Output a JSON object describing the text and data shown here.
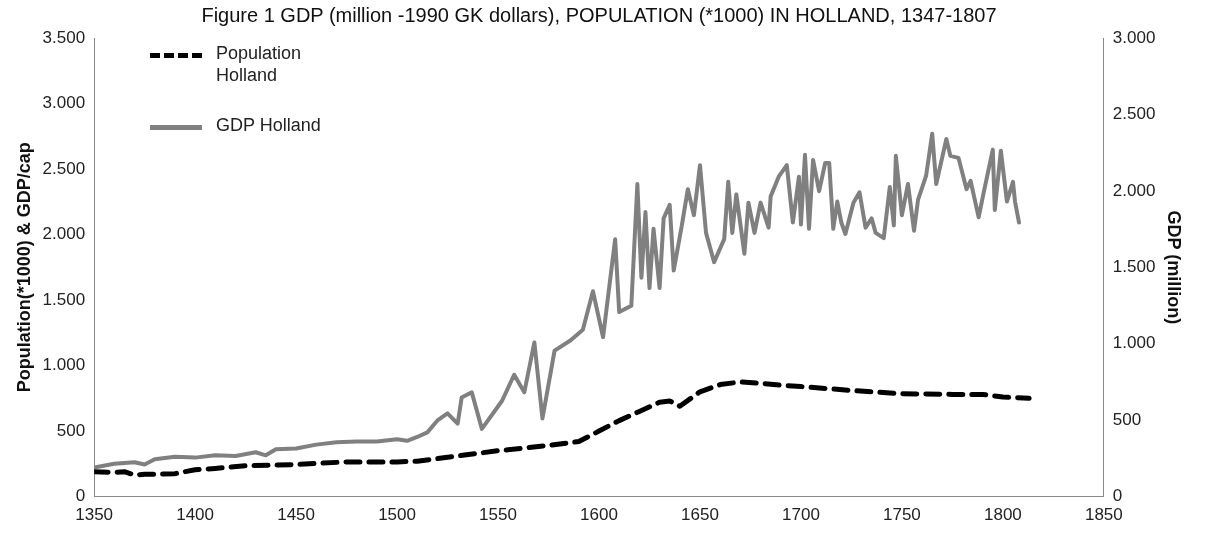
{
  "chart_data": {
    "type": "line",
    "title": "Figure 1 GDP (million -1990 GK dollars), POPULATION (*1000) IN HOLLAND, 1347-1807",
    "ylabel": "Population(*1000) & GDP/cap",
    "y2label": "GDP (million)",
    "legend": "top left",
    "marker": "none",
    "xlim": [
      1350,
      1850
    ],
    "xticks": [
      1350,
      1400,
      1450,
      1500,
      1550,
      1600,
      1650,
      1700,
      1750,
      1800,
      1850
    ],
    "ylim": [
      0,
      3500
    ],
    "yticks": [
      0,
      500,
      {
        "value": 1000,
        "label": "1.000"
      },
      {
        "value": 1500,
        "label": "1.500"
      },
      {
        "value": 2000,
        "label": "2.000"
      },
      {
        "value": 2500,
        "label": "2.500"
      },
      {
        "value": 3000,
        "label": "3.000"
      },
      {
        "value": 3500,
        "label": "3.500"
      }
    ],
    "y2lim": [
      0,
      3000
    ],
    "y2ticks": [
      0,
      500,
      {
        "value": 1000,
        "label": "1.000"
      },
      {
        "value": 1500,
        "label": "1.500"
      },
      {
        "value": 2000,
        "label": "2.000"
      },
      {
        "value": 2500,
        "label": "2.500"
      },
      {
        "value": 3000,
        "label": "3.000"
      }
    ],
    "series": [
      {
        "name": "Population Holland",
        "color": "#000000",
        "line_style": "dashed",
        "x": [
          1350,
          1360,
          1365,
          1370,
          1375,
          1380,
          1390,
          1400,
          1410,
          1425,
          1450,
          1475,
          1500,
          1510,
          1525,
          1550,
          1575,
          1590,
          1600,
          1610,
          1620,
          1630,
          1635,
          1640,
          1650,
          1660,
          1670,
          1680,
          1690,
          1700,
          1725,
          1750,
          1775,
          1790,
          1800,
          1813
        ],
        "values": [
          190,
          185,
          190,
          165,
          170,
          170,
          175,
          205,
          215,
          235,
          245,
          265,
          265,
          270,
          300,
          350,
          390,
          420,
          500,
          580,
          650,
          720,
          730,
          690,
          800,
          855,
          875,
          865,
          850,
          840,
          810,
          785,
          780,
          780,
          760,
          750
        ]
      },
      {
        "name": "GDP Holland",
        "color": "#808080",
        "line_style": "solid",
        "axis": "y2",
        "x": [
          1350,
          1360,
          1370,
          1375,
          1380,
          1390,
          1400,
          1410,
          1420,
          1430,
          1435,
          1440,
          1450,
          1460,
          1470,
          1480,
          1490,
          1500,
          1505,
          1510,
          1515,
          1520,
          1525,
          1530,
          1532,
          1537,
          1542,
          1552,
          1558,
          1563,
          1568,
          1572,
          1578,
          1586,
          1592,
          1597,
          1602,
          1608,
          1610,
          1616,
          1619,
          1621,
          1623,
          1625,
          1627,
          1630,
          1632,
          1635,
          1637,
          1641,
          1644,
          1647,
          1650,
          1653,
          1657,
          1662,
          1664,
          1666,
          1668,
          1672,
          1674,
          1677,
          1680,
          1684,
          1685,
          1689,
          1693,
          1696,
          1699,
          1700,
          1702,
          1704,
          1706,
          1709,
          1712,
          1714,
          1716,
          1718,
          1720,
          1722,
          1726,
          1729,
          1732,
          1735,
          1737,
          1741,
          1744,
          1746,
          1747,
          1750,
          1753,
          1756,
          1758,
          1762,
          1765,
          1767,
          1772,
          1774,
          1778,
          1782,
          1784,
          1788,
          1790,
          1795,
          1796,
          1799,
          1802,
          1805,
          1806,
          1808
        ],
        "values": [
          190,
          215,
          225,
          210,
          245,
          260,
          255,
          270,
          265,
          290,
          270,
          310,
          315,
          340,
          355,
          360,
          360,
          375,
          365,
          390,
          420,
          498,
          545,
          477,
          648,
          682,
          443,
          627,
          797,
          682,
          1009,
          511,
          955,
          1023,
          1091,
          1343,
          1043,
          1684,
          1207,
          1248,
          2045,
          1432,
          1861,
          1364,
          1752,
          1364,
          1820,
          1909,
          1479,
          1773,
          2011,
          1841,
          2168,
          1725,
          1534,
          1684,
          2059,
          1725,
          1977,
          1589,
          1923,
          1725,
          1923,
          1759,
          1964,
          2093,
          2168,
          1793,
          2093,
          1780,
          2236,
          1752,
          2202,
          1998,
          2182,
          2182,
          1752,
          1930,
          1793,
          1718,
          1923,
          1991,
          1759,
          1820,
          1725,
          1691,
          2025,
          1773,
          2229,
          1841,
          2045,
          1739,
          1943,
          2100,
          2373,
          2045,
          2339,
          2229,
          2216,
          2011,
          2066,
          1827,
          1957,
          2270,
          1875,
          2263,
          1930,
          2059,
          1930,
          1793
        ]
      }
    ]
  }
}
